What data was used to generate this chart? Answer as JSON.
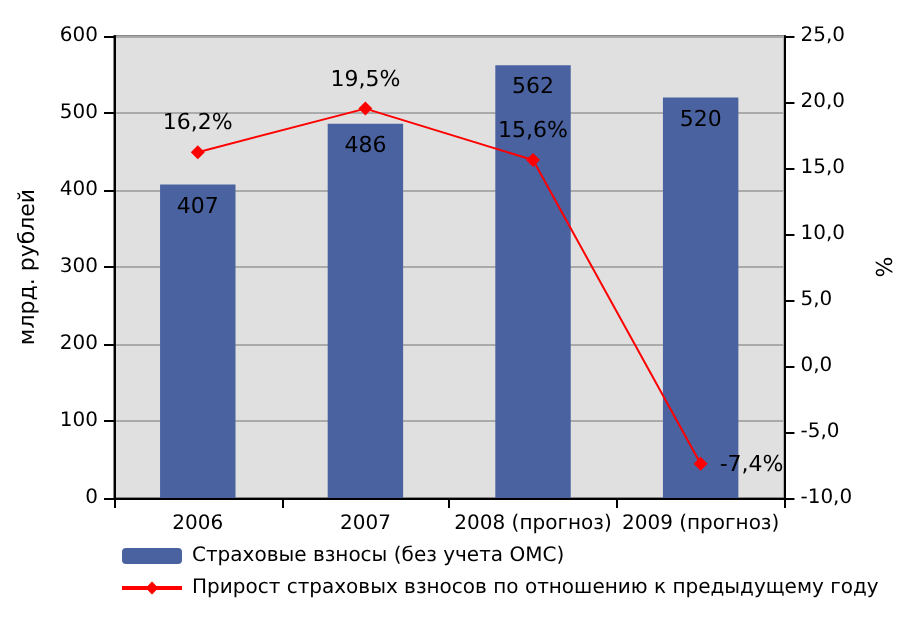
{
  "chart_data": {
    "type": "bar",
    "categories": [
      "2006",
      "2007",
      "2008 (прогноз)",
      "2009 (прогноз)"
    ],
    "ylabel": "млрд. рублей",
    "y2label": "%",
    "series": [
      {
        "name": "Страховые взносы (без учета ОМС)",
        "color": "#4a62a0",
        "values": [
          407,
          486,
          562,
          520
        ],
        "value_labels": [
          "407",
          "486",
          "562",
          "520"
        ]
      },
      {
        "name": "Прирост страховых взносов по отношению к предыдущему году",
        "type": "line",
        "axis": "y2",
        "color": "#ff0000",
        "marker": "diamond",
        "values": [
          16.2,
          19.5,
          15.6,
          -7.4
        ],
        "value_labels": [
          "16,2%",
          "19,5%",
          "15,6%",
          "-7,4%"
        ]
      }
    ],
    "ylim": [
      0,
      600
    ],
    "yticks": [
      0,
      100,
      200,
      300,
      400,
      500,
      600
    ],
    "y2lim": [
      -10,
      25
    ],
    "y2ticks": [
      {
        "value": -10,
        "label": "-10,0"
      },
      {
        "value": -5,
        "label": "-5,0"
      },
      {
        "value": 0,
        "label": "0,0"
      },
      {
        "value": 5,
        "label": "5,0"
      },
      {
        "value": 10,
        "label": "10,0"
      },
      {
        "value": 15,
        "label": "15,0"
      },
      {
        "value": 20,
        "label": "20,0"
      },
      {
        "value": 25,
        "label": "25,0"
      }
    ],
    "grid": "y",
    "legend": "bottom"
  }
}
